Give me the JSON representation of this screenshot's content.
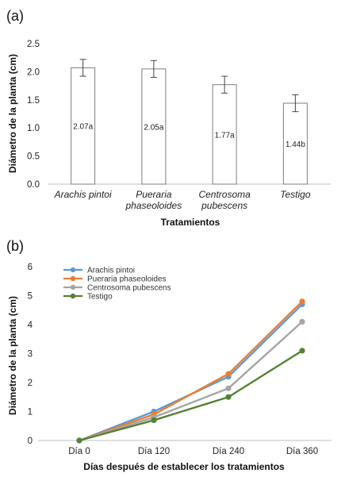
{
  "chart_data": [
    {
      "panel": "(a)",
      "type": "bar",
      "categories": [
        [
          "Arachis pintoi"
        ],
        [
          "Pueraria",
          "phaseoloides"
        ],
        [
          "Centrosoma",
          "pubescens"
        ],
        [
          "Testigo"
        ]
      ],
      "values": [
        2.07,
        2.05,
        1.77,
        1.44
      ],
      "errors": [
        0.15,
        0.15,
        0.15,
        0.15
      ],
      "data_labels": [
        "2.07a",
        "2.05a",
        "1.77a",
        "1.44b"
      ],
      "xlabel": "Tratamientos",
      "ylabel": "Diámetro de la planta (cm)",
      "ylim": [
        0,
        2.5
      ],
      "yticks": [
        "0.0",
        "0.5",
        "1.0",
        "1.5",
        "2.0",
        "2.5"
      ],
      "bar_color": "#ffffff",
      "bar_edge": "#7f7f7f",
      "grid": false
    },
    {
      "panel": "(b)",
      "type": "line",
      "categories": [
        "Día 0",
        "Día 120",
        "Día 240",
        "Día 360"
      ],
      "series": [
        {
          "name": "Arachis pintoi",
          "values": [
            0,
            1.0,
            2.2,
            4.7
          ],
          "color": "#5b9bd5"
        },
        {
          "name": "Pueraria phaseoloides",
          "values": [
            0,
            0.9,
            2.3,
            4.8
          ],
          "color": "#ed7d31"
        },
        {
          "name": "Centrosoma pubescens",
          "values": [
            0,
            0.8,
            1.8,
            4.1
          ],
          "color": "#a5a5a5"
        },
        {
          "name": "Testigo",
          "values": [
            0,
            0.7,
            1.5,
            3.1
          ],
          "color": "#548235"
        }
      ],
      "xlabel": "Días después de establecer los tratamientos",
      "ylabel": "Diámetro de la planta (cm)",
      "ylim": [
        0,
        6
      ],
      "yticks": [
        "0",
        "1",
        "2",
        "3",
        "4",
        "5",
        "6"
      ],
      "legend_position": "top-left",
      "grid": false
    }
  ]
}
